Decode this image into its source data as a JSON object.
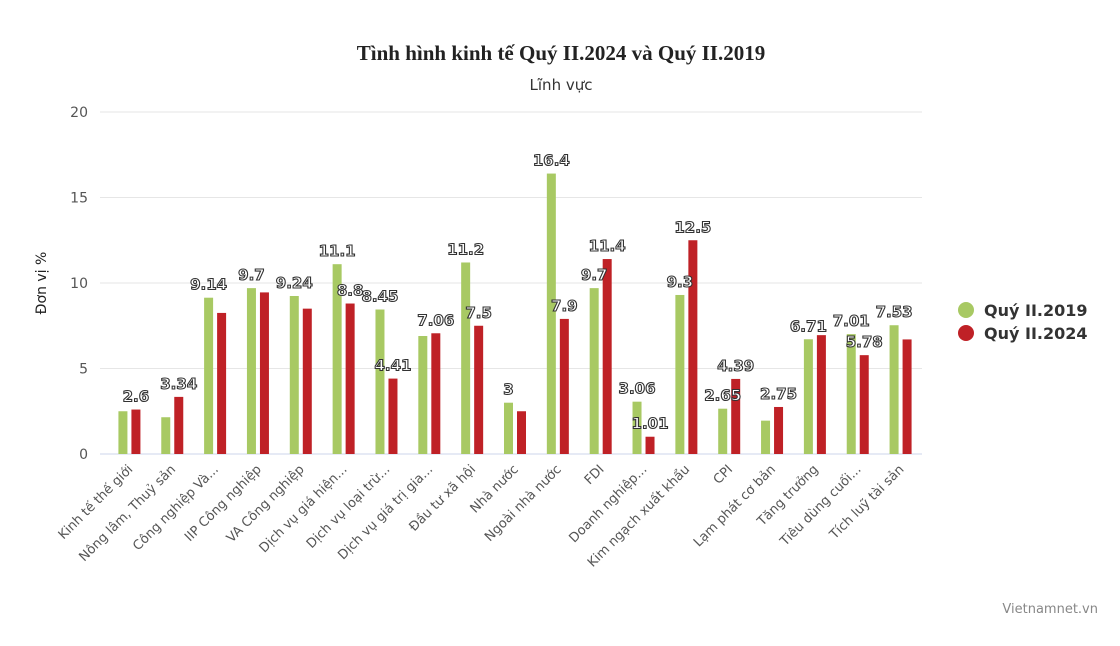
{
  "chart_data": {
    "type": "bar",
    "title": "Tình hình kinh tế Quý II.2024 và Quý II.2019",
    "subtitle": "Lĩnh vực",
    "xlabel": "",
    "ylabel": "Đơn vị %",
    "ylim": [
      0,
      20
    ],
    "yticks": [
      0,
      5,
      10,
      15,
      20
    ],
    "grid": true,
    "legend": "right",
    "credit": "Vietnamnet.vn",
    "categories": [
      "Kinh tế thế giới",
      "Nông lâm, Thuỷ sản",
      "Công nghiệp Và...",
      "IIP Công nghiệp",
      "VA Công nghiệp",
      "Dịch vụ giá hiện...",
      "Dịch vụ loại trừ...",
      "Dịch vụ giá trị gia...",
      "Đầu tư xã hội",
      "Nhà nước",
      "Ngoài nhà nước",
      "FDI",
      "Doanh nghiệp...",
      "Kim ngạch xuất khẩu",
      "CPI",
      "Lạm phát cơ bản",
      "Tăng trưởng",
      "Tiêu dùng cuối...",
      "Tích luỹ tài sản"
    ],
    "series": [
      {
        "name": "Quý II.2019",
        "color": "#a8c963",
        "values": [
          2.5,
          2.15,
          9.14,
          9.7,
          9.24,
          11.1,
          8.45,
          6.9,
          11.2,
          3,
          16.4,
          9.7,
          3.06,
          9.3,
          2.65,
          1.95,
          6.71,
          7.01,
          7.53
        ],
        "labels": [
          null,
          null,
          "9.14",
          "9.7",
          "9.24",
          "11.1",
          "8.45",
          null,
          "11.2",
          "3",
          "16.4",
          "9.7",
          "3.06",
          "9.3",
          "2.65",
          null,
          "6.71",
          "7.01",
          "7.53"
        ]
      },
      {
        "name": "Quý II.2024",
        "color": "#bf2126",
        "values": [
          2.6,
          3.34,
          8.25,
          9.45,
          8.5,
          8.8,
          4.41,
          7.06,
          7.5,
          2.5,
          7.9,
          11.4,
          1.01,
          12.5,
          4.39,
          2.75,
          6.95,
          5.78,
          6.7
        ],
        "labels": [
          "2.6",
          "3.34",
          null,
          null,
          null,
          "8.8",
          "4.41",
          "7.06",
          "7.5",
          null,
          "7.9",
          "11.4",
          "1.01",
          "12.5",
          "4.39",
          "2.75",
          null,
          "5.78",
          null
        ]
      }
    ]
  }
}
